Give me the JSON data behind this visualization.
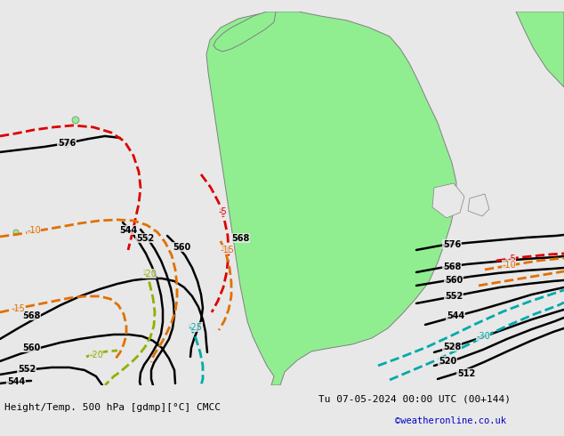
{
  "title_left": "Height/Temp. 500 hPa [gdmp][°C] CMCC",
  "title_right": "Tu 07-05-2024 00:00 UTC (00+144)",
  "credit": "©weatheronline.co.uk",
  "bg_color": "#e8e8e8",
  "land_color": "#90ee90",
  "border_color": "#808080",
  "figsize": [
    6.34,
    4.9
  ],
  "dpi": 100,
  "black_lw": 1.8,
  "temp_lw": 2.0
}
